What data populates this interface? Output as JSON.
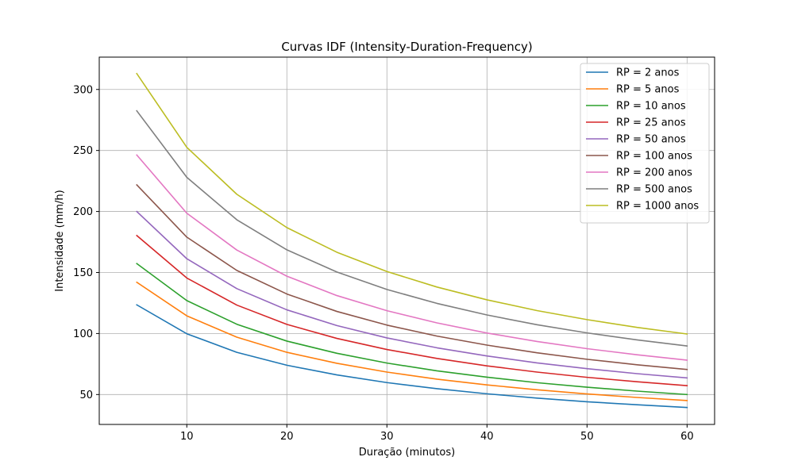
{
  "chart_data": {
    "type": "line",
    "title": "Curvas IDF (Intensity-Duration-Frequency)",
    "xlabel": "Duração (minutos)",
    "ylabel": "Intensidade (mm/h)",
    "xlim": [
      1.25,
      62.75
    ],
    "ylim": [
      25.5,
      326.5
    ],
    "x_ticks": [
      10,
      20,
      30,
      40,
      50,
      60
    ],
    "y_ticks": [
      50,
      100,
      150,
      200,
      250,
      300
    ],
    "grid": true,
    "legend_position": "upper-right",
    "x": [
      5,
      10,
      15,
      20,
      25,
      30,
      35,
      40,
      45,
      50,
      55,
      60
    ],
    "series": [
      {
        "name": "RP = 2 anos",
        "color": "#1f77b4",
        "values": [
          123.5,
          99.8,
          84.6,
          74.0,
          66.1,
          59.8,
          54.8,
          50.6,
          47.1,
          44.1,
          41.6,
          39.4
        ]
      },
      {
        "name": "RP = 5 anos",
        "color": "#ff7f0e",
        "values": [
          142.0,
          114.5,
          97.0,
          84.6,
          75.6,
          68.4,
          62.6,
          57.9,
          53.9,
          50.5,
          47.6,
          45.1
        ]
      },
      {
        "name": "RP = 10 anos",
        "color": "#2ca02c",
        "values": [
          157.3,
          127.0,
          107.6,
          93.8,
          83.8,
          75.8,
          69.4,
          64.2,
          59.7,
          56.0,
          52.8,
          50.0
        ]
      },
      {
        "name": "RP = 25 anos",
        "color": "#d62728",
        "values": [
          180.3,
          145.5,
          123.3,
          107.5,
          96.0,
          86.9,
          79.6,
          73.5,
          68.4,
          64.1,
          60.5,
          57.3
        ]
      },
      {
        "name": "RP = 50 anos",
        "color": "#9467bd",
        "values": [
          200.0,
          161.3,
          136.8,
          119.4,
          106.5,
          96.4,
          88.3,
          81.6,
          75.9,
          71.2,
          67.1,
          63.6
        ]
      },
      {
        "name": "RP = 100 anos",
        "color": "#8c564b",
        "values": [
          221.8,
          179.0,
          151.7,
          132.4,
          118.1,
          106.9,
          97.9,
          90.5,
          84.2,
          78.9,
          74.4,
          70.5
        ]
      },
      {
        "name": "RP = 200 anos",
        "color": "#e377c2",
        "values": [
          246.3,
          198.6,
          168.4,
          147.0,
          131.1,
          118.7,
          108.7,
          100.4,
          93.5,
          87.6,
          82.6,
          78.2
        ]
      },
      {
        "name": "RP = 500 anos",
        "color": "#7f7f7f",
        "values": [
          282.5,
          228.0,
          193.2,
          168.6,
          150.4,
          136.1,
          124.7,
          115.2,
          107.2,
          100.5,
          94.8,
          89.8
        ]
      },
      {
        "name": "RP = 1000 anos",
        "color": "#bcbd22",
        "values": [
          313.0,
          252.6,
          214.1,
          186.8,
          166.6,
          150.8,
          138.1,
          127.6,
          118.8,
          111.4,
          105.0,
          99.6
        ]
      }
    ]
  }
}
